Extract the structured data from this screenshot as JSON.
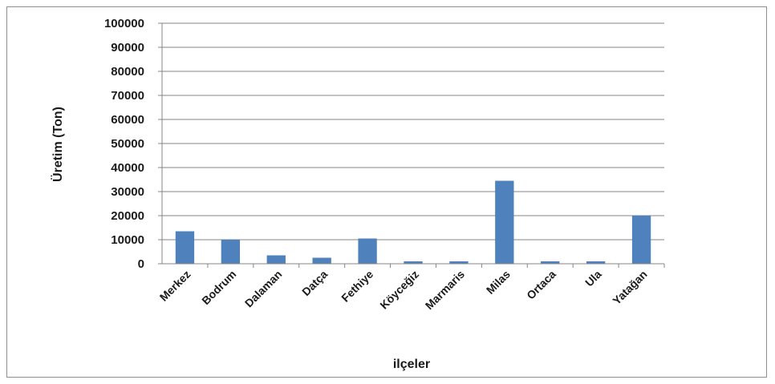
{
  "chart_data": {
    "type": "bar",
    "categories": [
      "Merkez",
      "Bodrum",
      "Dalaman",
      "Datça",
      "Fethiye",
      "Köyceğiz",
      "Marmaris",
      "Milas",
      "Ortaca",
      "Ula",
      "Yatağan"
    ],
    "values": [
      13500,
      10000,
      3500,
      2500,
      10500,
      1000,
      1000,
      34500,
      1000,
      1000,
      20000
    ],
    "title": "",
    "xlabel": "ilçeler",
    "ylabel": "Üretim (Ton)",
    "ylim": [
      0,
      100000
    ],
    "yticks": [
      0,
      10000,
      20000,
      30000,
      40000,
      50000,
      60000,
      70000,
      80000,
      90000,
      100000
    ],
    "grid": true,
    "bar_color": "#4f81bd",
    "grid_color": "#868686"
  }
}
